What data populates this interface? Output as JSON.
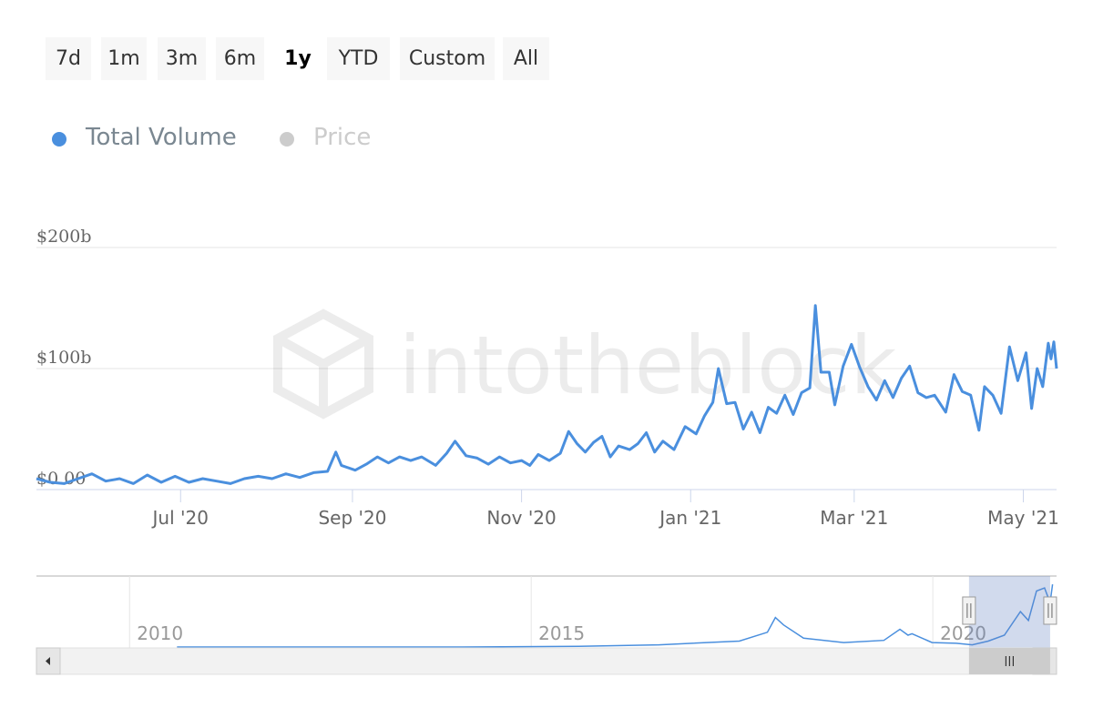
{
  "range_selector": {
    "buttons": [
      {
        "label": "7d",
        "active": false
      },
      {
        "label": "1m",
        "active": false
      },
      {
        "label": "3m",
        "active": false
      },
      {
        "label": "6m",
        "active": false
      },
      {
        "label": "1y",
        "active": true
      },
      {
        "label": "YTD",
        "active": false
      },
      {
        "label": "Custom",
        "active": false
      },
      {
        "label": "All",
        "active": false
      }
    ]
  },
  "legend": {
    "items": [
      {
        "label": "Total Volume",
        "color": "#4a8fde",
        "visible": true
      },
      {
        "label": "Price",
        "color": "#cccccc",
        "visible": false
      }
    ]
  },
  "watermark": {
    "text": "intotheblock"
  },
  "colors": {
    "series": "#4a8fde",
    "grid": "#e6e6e6",
    "axis": "#ccd6eb",
    "label": "#666666",
    "navigator_mask": "rgba(102,133,194,0.3)",
    "scrollbar_bg": "#f2f2f2",
    "scrollbar_thumb": "#cccccc"
  },
  "chart_data": {
    "type": "line",
    "title": "",
    "xlabel": "",
    "ylabel": "",
    "ylim": [
      0,
      200
    ],
    "y_unit": "b",
    "y_ticks": [
      {
        "value": 0,
        "label": "$0.00"
      },
      {
        "value": 100,
        "label": "$100b"
      },
      {
        "value": 200,
        "label": "$200b"
      }
    ],
    "x_range": [
      "2020-05-10",
      "2021-05-13"
    ],
    "x_ticks": [
      {
        "date": "2020-07-01",
        "label": "Jul '20"
      },
      {
        "date": "2020-09-01",
        "label": "Sep '20"
      },
      {
        "date": "2020-11-01",
        "label": "Nov '20"
      },
      {
        "date": "2021-01-01",
        "label": "Jan '21"
      },
      {
        "date": "2021-03-01",
        "label": "Mar '21"
      },
      {
        "date": "2021-05-01",
        "label": "May '21"
      }
    ],
    "grid": true,
    "legend_position": "top-left",
    "series": [
      {
        "name": "Total Volume",
        "points": [
          [
            "2020-05-10",
            9
          ],
          [
            "2020-05-15",
            6
          ],
          [
            "2020-05-20",
            5
          ],
          [
            "2020-05-25",
            9
          ],
          [
            "2020-05-30",
            13
          ],
          [
            "2020-06-04",
            7
          ],
          [
            "2020-06-09",
            9
          ],
          [
            "2020-06-14",
            5
          ],
          [
            "2020-06-19",
            12
          ],
          [
            "2020-06-24",
            6
          ],
          [
            "2020-06-29",
            11
          ],
          [
            "2020-07-04",
            6
          ],
          [
            "2020-07-09",
            9
          ],
          [
            "2020-07-14",
            7
          ],
          [
            "2020-07-19",
            5
          ],
          [
            "2020-07-24",
            9
          ],
          [
            "2020-07-29",
            11
          ],
          [
            "2020-08-03",
            9
          ],
          [
            "2020-08-08",
            13
          ],
          [
            "2020-08-13",
            10
          ],
          [
            "2020-08-18",
            14
          ],
          [
            "2020-08-23",
            15
          ],
          [
            "2020-08-26",
            31
          ],
          [
            "2020-08-28",
            20
          ],
          [
            "2020-09-02",
            16
          ],
          [
            "2020-09-06",
            21
          ],
          [
            "2020-09-10",
            27
          ],
          [
            "2020-09-14",
            22
          ],
          [
            "2020-09-18",
            27
          ],
          [
            "2020-09-22",
            24
          ],
          [
            "2020-09-26",
            27
          ],
          [
            "2020-10-01",
            20
          ],
          [
            "2020-10-05",
            30
          ],
          [
            "2020-10-08",
            40
          ],
          [
            "2020-10-12",
            28
          ],
          [
            "2020-10-16",
            26
          ],
          [
            "2020-10-20",
            21
          ],
          [
            "2020-10-24",
            27
          ],
          [
            "2020-10-28",
            22
          ],
          [
            "2020-11-01",
            24
          ],
          [
            "2020-11-04",
            20
          ],
          [
            "2020-11-07",
            29
          ],
          [
            "2020-11-11",
            24
          ],
          [
            "2020-11-15",
            30
          ],
          [
            "2020-11-18",
            48
          ],
          [
            "2020-11-21",
            38
          ],
          [
            "2020-11-24",
            31
          ],
          [
            "2020-11-27",
            39
          ],
          [
            "2020-11-30",
            44
          ],
          [
            "2020-12-03",
            27
          ],
          [
            "2020-12-06",
            36
          ],
          [
            "2020-12-10",
            33
          ],
          [
            "2020-12-13",
            38
          ],
          [
            "2020-12-16",
            47
          ],
          [
            "2020-12-19",
            31
          ],
          [
            "2020-12-22",
            40
          ],
          [
            "2020-12-26",
            33
          ],
          [
            "2020-12-30",
            52
          ],
          [
            "2021-01-03",
            46
          ],
          [
            "2021-01-06",
            61
          ],
          [
            "2021-01-09",
            72
          ],
          [
            "2021-01-11",
            100
          ],
          [
            "2021-01-14",
            71
          ],
          [
            "2021-01-17",
            72
          ],
          [
            "2021-01-20",
            50
          ],
          [
            "2021-01-23",
            64
          ],
          [
            "2021-01-26",
            47
          ],
          [
            "2021-01-29",
            68
          ],
          [
            "2021-02-01",
            63
          ],
          [
            "2021-02-04",
            78
          ],
          [
            "2021-02-07",
            62
          ],
          [
            "2021-02-10",
            80
          ],
          [
            "2021-02-13",
            84
          ],
          [
            "2021-02-15",
            152
          ],
          [
            "2021-02-17",
            97
          ],
          [
            "2021-02-20",
            97
          ],
          [
            "2021-02-22",
            70
          ],
          [
            "2021-02-25",
            102
          ],
          [
            "2021-02-28",
            120
          ],
          [
            "2021-03-03",
            101
          ],
          [
            "2021-03-06",
            85
          ],
          [
            "2021-03-09",
            74
          ],
          [
            "2021-03-12",
            90
          ],
          [
            "2021-03-15",
            76
          ],
          [
            "2021-03-18",
            92
          ],
          [
            "2021-03-21",
            102
          ],
          [
            "2021-03-24",
            80
          ],
          [
            "2021-03-27",
            76
          ],
          [
            "2021-03-30",
            78
          ],
          [
            "2021-04-03",
            64
          ],
          [
            "2021-04-06",
            95
          ],
          [
            "2021-04-09",
            81
          ],
          [
            "2021-04-12",
            78
          ],
          [
            "2021-04-15",
            49
          ],
          [
            "2021-04-17",
            85
          ],
          [
            "2021-04-20",
            78
          ],
          [
            "2021-04-23",
            63
          ],
          [
            "2021-04-26",
            118
          ],
          [
            "2021-04-29",
            90
          ],
          [
            "2021-05-02",
            113
          ],
          [
            "2021-05-04",
            67
          ],
          [
            "2021-05-06",
            100
          ],
          [
            "2021-05-08",
            85
          ],
          [
            "2021-05-10",
            121
          ],
          [
            "2021-05-11",
            108
          ],
          [
            "2021-05-12",
            122
          ],
          [
            "2021-05-13",
            100
          ]
        ]
      }
    ],
    "navigator": {
      "x_ticks": [
        {
          "year": 2010,
          "label": "2010"
        },
        {
          "year": 2015,
          "label": "2015"
        },
        {
          "year": 2020,
          "label": "2020"
        }
      ],
      "points": [
        [
          2010.5,
          0
        ],
        [
          2012.0,
          0
        ],
        [
          2014.0,
          0
        ],
        [
          2015.5,
          1
        ],
        [
          2016.5,
          3
        ],
        [
          2017.5,
          8
        ],
        [
          2017.85,
          20
        ],
        [
          2017.95,
          40
        ],
        [
          2018.05,
          30
        ],
        [
          2018.3,
          12
        ],
        [
          2018.8,
          6
        ],
        [
          2019.3,
          9
        ],
        [
          2019.5,
          24
        ],
        [
          2019.6,
          16
        ],
        [
          2019.65,
          18
        ],
        [
          2019.9,
          6
        ],
        [
          2020.2,
          5
        ],
        [
          2020.4,
          3
        ],
        [
          2020.6,
          8
        ],
        [
          2020.8,
          16
        ],
        [
          2021.0,
          48
        ],
        [
          2021.1,
          36
        ],
        [
          2021.2,
          76
        ],
        [
          2021.3,
          80
        ],
        [
          2021.37,
          60
        ],
        [
          2021.4,
          85
        ]
      ],
      "selected_range": [
        2020.36,
        2021.37
      ]
    }
  }
}
